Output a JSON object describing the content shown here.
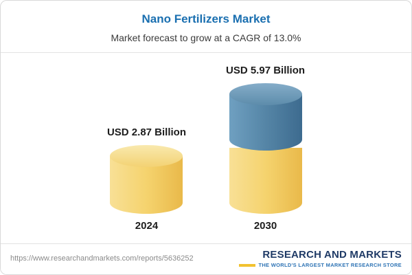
{
  "chart_data": {
    "type": "bar",
    "title": "Nano Fertilizers Market",
    "subtitle": "Market forecast to grow at a CAGR of 13.0%",
    "cagr": "13.0%",
    "unit": "USD Billion",
    "categories": [
      "2024",
      "2030"
    ],
    "values": [
      2.87,
      5.97
    ],
    "value_labels": [
      "USD 2.87 Billion",
      "USD 5.97 Billion"
    ],
    "legend_position": "none",
    "grid": false,
    "colors": {
      "bar_2024": "#F2CB5E",
      "bar_2030_top": "#4A7EA5",
      "bar_2030_bottom": "#F2CB5E",
      "title_text": "#1A6FB0"
    }
  },
  "footer": {
    "url": "https://www.researchandmarkets.com/reports/5636252",
    "logo_title": "RESEARCH AND MARKETS",
    "logo_tagline": "THE WORLD'S LARGEST MARKET RESEARCH STORE"
  }
}
